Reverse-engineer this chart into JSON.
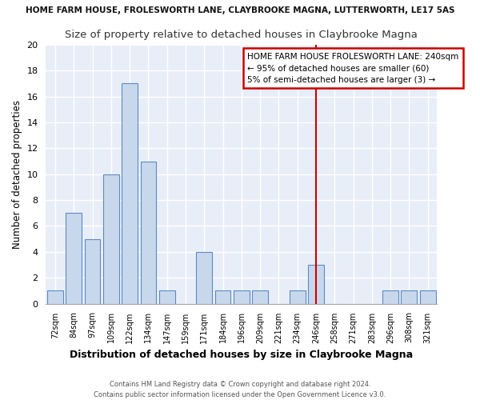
{
  "title_top": "HOME FARM HOUSE, FROLESWORTH LANE, CLAYBROOKE MAGNA, LUTTERWORTH, LE17 5AS",
  "title_main": "Size of property relative to detached houses in Claybrooke Magna",
  "xlabel": "Distribution of detached houses by size in Claybrooke Magna",
  "ylabel": "Number of detached properties",
  "bin_labels": [
    "72sqm",
    "84sqm",
    "97sqm",
    "109sqm",
    "122sqm",
    "134sqm",
    "147sqm",
    "159sqm",
    "171sqm",
    "184sqm",
    "196sqm",
    "209sqm",
    "221sqm",
    "234sqm",
    "246sqm",
    "258sqm",
    "271sqm",
    "283sqm",
    "296sqm",
    "308sqm",
    "321sqm"
  ],
  "bar_heights": [
    1,
    7,
    5,
    10,
    17,
    11,
    1,
    0,
    4,
    1,
    1,
    1,
    0,
    1,
    3,
    0,
    0,
    0,
    1,
    1,
    1
  ],
  "bar_color": "#c8d8ec",
  "bar_edgecolor": "#5b8ac4",
  "ylim": [
    0,
    20
  ],
  "yticks": [
    0,
    2,
    4,
    6,
    8,
    10,
    12,
    14,
    16,
    18,
    20
  ],
  "vline_x_index": 14,
  "vline_color": "#cc0000",
  "annotation_line1": "HOME FARM HOUSE FROLESWORTH LANE: 240sqm",
  "annotation_line2": "← 95% of detached houses are smaller (60)",
  "annotation_line3": "5% of semi-detached houses are larger (3) →",
  "annotation_box_facecolor": "#ffffff",
  "annotation_box_edgecolor": "#cc0000",
  "footer1": "Contains HM Land Registry data © Crown copyright and database right 2024.",
  "footer2": "Contains public sector information licensed under the Open Government Licence v3.0.",
  "background_color": "#ffffff",
  "plot_bg_color": "#e8eef8",
  "grid_color": "#ffffff",
  "title_top_color": "#111111",
  "title_main_color": "#333333"
}
